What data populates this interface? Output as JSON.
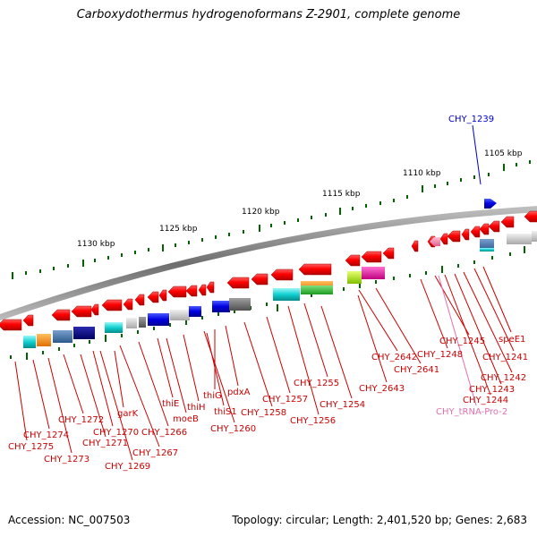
{
  "title": "Carboxydothermus hydrogenoformans Z-2901, complete genome",
  "accession_label": "Accession: NC_007503",
  "topology_label": "Topology: circular; Length: 2,401,520 bp; Genes: 2,683",
  "colors": {
    "backbone": "#7f7f7f",
    "gene_forward": "#ee0000",
    "label_red": "#cc0000",
    "label_blue": "#0000cc",
    "label_pink": "#e070b0",
    "tick": "#006400"
  },
  "ruler_labels": [
    "1130 kbp",
    "1125 kbp",
    "1120 kbp",
    "1115 kbp",
    "1110 kbp",
    "1105 kbp"
  ],
  "gene_labels": [
    {
      "text": "CHY_1239",
      "color": "blue"
    },
    {
      "text": "speE1",
      "color": "red"
    },
    {
      "text": "CHY_1241",
      "color": "red"
    },
    {
      "text": "CHY_1242",
      "color": "red"
    },
    {
      "text": "CHY_1243",
      "color": "red"
    },
    {
      "text": "CHY_1244",
      "color": "red"
    },
    {
      "text": "CHY_1245",
      "color": "red"
    },
    {
      "text": "CHY_1248",
      "color": "red"
    },
    {
      "text": "CHY_tRNA-Pro-2",
      "color": "pink"
    },
    {
      "text": "CHY_2641",
      "color": "red"
    },
    {
      "text": "CHY_2642",
      "color": "red"
    },
    {
      "text": "CHY_2643",
      "color": "red"
    },
    {
      "text": "CHY_1254",
      "color": "red"
    },
    {
      "text": "CHY_1255",
      "color": "red"
    },
    {
      "text": "CHY_1256",
      "color": "red"
    },
    {
      "text": "CHY_1257",
      "color": "red"
    },
    {
      "text": "CHY_1258",
      "color": "red"
    },
    {
      "text": "pdxA",
      "color": "red"
    },
    {
      "text": "thiG",
      "color": "red"
    },
    {
      "text": "thiS1",
      "color": "red"
    },
    {
      "text": "CHY_1260",
      "color": "red"
    },
    {
      "text": "thiH",
      "color": "red"
    },
    {
      "text": "thiE",
      "color": "red"
    },
    {
      "text": "moeB",
      "color": "red"
    },
    {
      "text": "CHY_1266",
      "color": "red"
    },
    {
      "text": "CHY_1267",
      "color": "red"
    },
    {
      "text": "garK",
      "color": "red"
    },
    {
      "text": "CHY_1269",
      "color": "red"
    },
    {
      "text": "CHY_1270",
      "color": "red"
    },
    {
      "text": "CHY_1271",
      "color": "red"
    },
    {
      "text": "CHY_1272",
      "color": "red"
    },
    {
      "text": "CHY_1273",
      "color": "red"
    },
    {
      "text": "CHY_1274",
      "color": "red"
    },
    {
      "text": "CHY_1275",
      "color": "red"
    }
  ]
}
